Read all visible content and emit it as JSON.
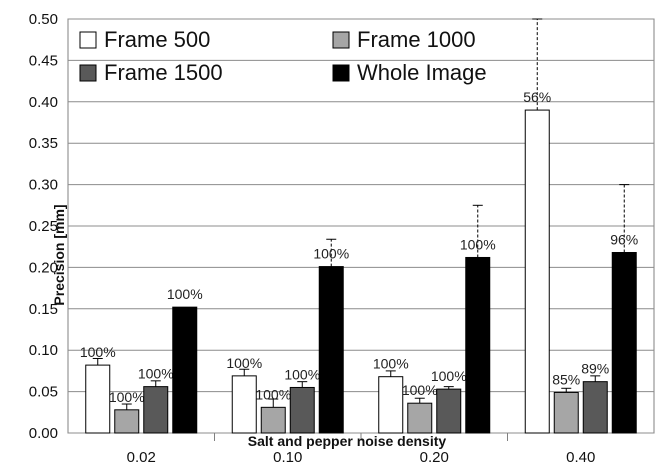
{
  "chart_data": {
    "type": "bar",
    "xlabel": "Salt and pepper noise density",
    "ylabel": "Precision [mm]",
    "ylim": [
      0,
      0.5
    ],
    "yticks": [
      "0.00",
      "0.05",
      "0.10",
      "0.15",
      "0.20",
      "0.25",
      "0.30",
      "0.35",
      "0.40",
      "0.45",
      "0.50"
    ],
    "categories": [
      "0.02",
      "0.10",
      "0.20",
      "0.40"
    ],
    "grid": true,
    "legend_position": "top",
    "series": [
      {
        "name": "Frame 500",
        "color": "#ffffff",
        "values": [
          0.082,
          0.069,
          0.068,
          0.39
        ],
        "errors": [
          0.008,
          0.008,
          0.007,
          0.11
        ],
        "labels": [
          "100%",
          "100%",
          "100%",
          "56%"
        ]
      },
      {
        "name": "Frame 1000",
        "color": "#a6a6a6",
        "values": [
          0.028,
          0.031,
          0.036,
          0.049
        ],
        "errors": [
          0.007,
          0.01,
          0.006,
          0.005
        ],
        "labels": [
          "100%",
          "100%",
          "100%",
          "85%"
        ]
      },
      {
        "name": "Frame 1500",
        "color": "#595959",
        "values": [
          0.056,
          0.055,
          0.053,
          0.062
        ],
        "errors": [
          0.007,
          0.007,
          0.003,
          0.007
        ],
        "labels": [
          "100%",
          "100%",
          "100%",
          "89%"
        ]
      },
      {
        "name": "Whole Image",
        "color": "#000000",
        "values": [
          0.152,
          0.201,
          0.212,
          0.218
        ],
        "errors": [
          0.0,
          0.033,
          0.063,
          0.082
        ],
        "labels": [
          "100%",
          "100%",
          "100%",
          "96%"
        ]
      }
    ]
  }
}
